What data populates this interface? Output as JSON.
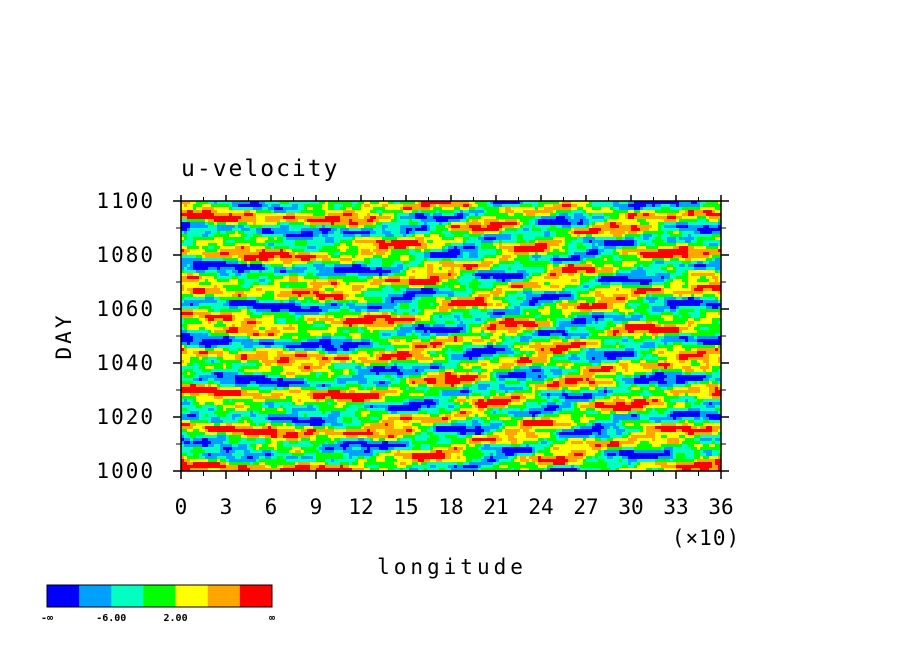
{
  "chart_data": {
    "type": "heatmap",
    "title": "u-velocity",
    "xlabel": "longitude",
    "ylabel": "DAY",
    "x_multiplier": "(×10)",
    "xlim": [
      0,
      36
    ],
    "ylim": [
      1000,
      1100
    ],
    "x_ticks": [
      "0",
      "3",
      "6",
      "9",
      "12",
      "15",
      "18",
      "21",
      "24",
      "27",
      "30",
      "33",
      "36"
    ],
    "y_ticks": [
      "1000",
      "1020",
      "1040",
      "1060",
      "1080",
      "1100"
    ],
    "colorbar": {
      "labels": [
        "-∞",
        "-6.00",
        "2.00",
        "∞"
      ],
      "colors": [
        "#0000ff",
        "#00a0ff",
        "#00ffc0",
        "#00ff00",
        "#ffff00",
        "#ffa500",
        "#ff0000"
      ]
    },
    "field_note": "Hovmöller contour-fill pattern; bands drift eastward with time"
  }
}
